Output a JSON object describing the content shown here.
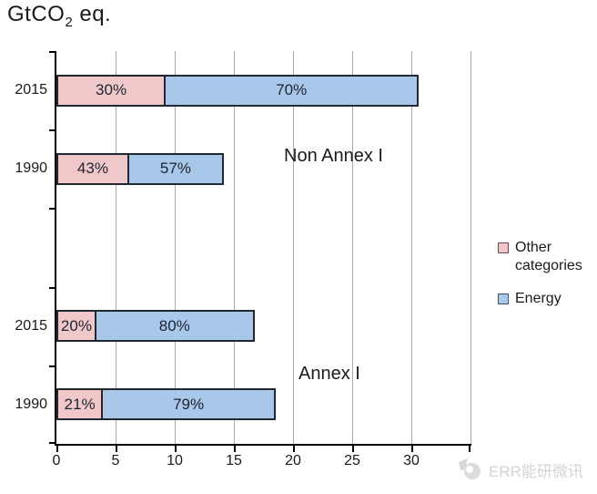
{
  "title": {
    "prefix": "GtCO",
    "sub": "2",
    "suffix": " eq."
  },
  "chart_data": {
    "type": "bar",
    "orientation": "horizontal-stacked",
    "unit_label": "GtCO2 eq.",
    "x_axis": {
      "ticks": [
        0,
        5,
        10,
        15,
        20,
        25,
        30
      ],
      "max": 35,
      "grid": true
    },
    "groups": [
      {
        "label": "Non Annex I",
        "rows": [
          {
            "year": "2015",
            "total_gtco2": 30.8,
            "segments": [
              {
                "name": "Other categories",
                "pct": 30,
                "label": "30%"
              },
              {
                "name": "Energy",
                "pct": 70,
                "label": "70%"
              }
            ]
          },
          {
            "year": "1990",
            "total_gtco2": 14.3,
            "segments": [
              {
                "name": "Other categories",
                "pct": 43,
                "label": "43%"
              },
              {
                "name": "Energy",
                "pct": 57,
                "label": "57%"
              }
            ]
          }
        ]
      },
      {
        "label": "Annex I",
        "rows": [
          {
            "year": "2015",
            "total_gtco2": 16.9,
            "segments": [
              {
                "name": "Other categories",
                "pct": 20,
                "label": "20%"
              },
              {
                "name": "Energy",
                "pct": 80,
                "label": "80%"
              }
            ]
          },
          {
            "year": "1990",
            "total_gtco2": 18.7,
            "segments": [
              {
                "name": "Other categories",
                "pct": 21,
                "label": "21%"
              },
              {
                "name": "Energy",
                "pct": 79,
                "label": "79%"
              }
            ]
          }
        ]
      }
    ],
    "legend": {
      "position": "right",
      "entries": [
        {
          "label": "Other categories",
          "fill": "#f1c8ca",
          "border": "#6d4a4e"
        },
        {
          "label": "Energy",
          "fill": "#a9c7e9",
          "border": "#3c4e68"
        }
      ]
    },
    "colors": {
      "other": "#f1c8ca",
      "energy": "#a9c7e9",
      "bar_border": "#1f2833",
      "grid": "#a8a8a8",
      "axis": "#000000",
      "segment_text": "#1c2431"
    }
  },
  "annotations": [
    {
      "text": "Non Annex I"
    },
    {
      "text": "Annex I"
    }
  ],
  "watermark": {
    "text": "ERR能研微讯"
  }
}
